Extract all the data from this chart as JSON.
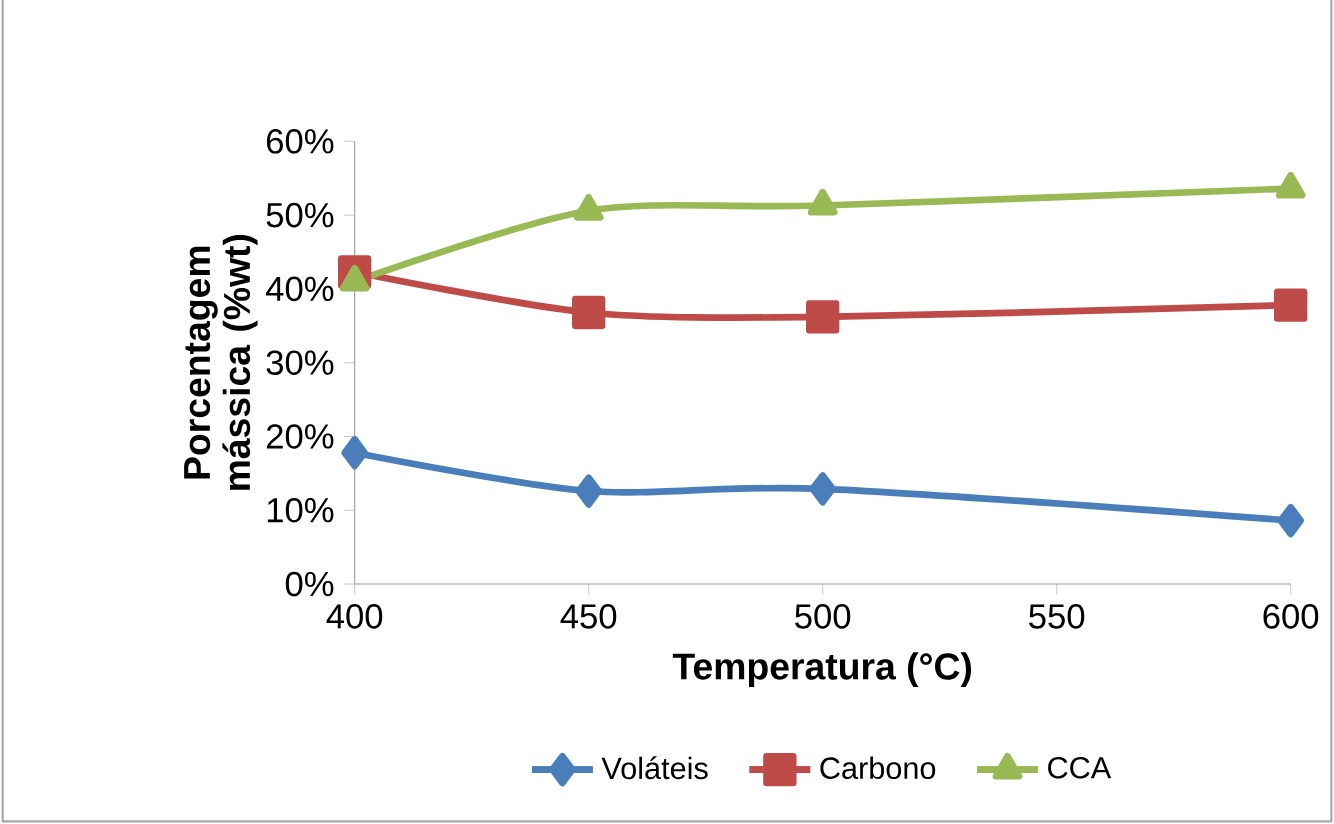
{
  "chart_data": {
    "type": "line",
    "xlabel": "Temperatura (°C)",
    "ylabel": "Porcentagem mássica (%wt)",
    "x": [
      400,
      450,
      500,
      600
    ],
    "series": [
      {
        "name": "Voláteis",
        "color": "#4a7ebb",
        "marker": "diamond",
        "values": [
          17.8,
          12.6,
          12.9,
          8.6
        ]
      },
      {
        "name": "Carbono",
        "color": "#be4b48",
        "marker": "square",
        "values": [
          42.3,
          36.8,
          36.2,
          37.8
        ]
      },
      {
        "name": "CCA",
        "color": "#98b954",
        "marker": "triangle",
        "values": [
          41,
          50.6,
          51.3,
          53.6
        ]
      }
    ],
    "xlim": [
      400,
      600
    ],
    "xticks": [
      400,
      450,
      500,
      550,
      600
    ],
    "ylim": [
      0,
      60
    ],
    "yticks": [
      {
        "value": 0,
        "label": "0%"
      },
      {
        "value": 10,
        "label": "10%"
      },
      {
        "value": 20,
        "label": "20%"
      },
      {
        "value": 30,
        "label": "30%"
      },
      {
        "value": 40,
        "label": "40%"
      },
      {
        "value": 50,
        "label": "50%"
      },
      {
        "value": 60,
        "label": "60%"
      }
    ],
    "grid": false,
    "legend": "bottom"
  }
}
